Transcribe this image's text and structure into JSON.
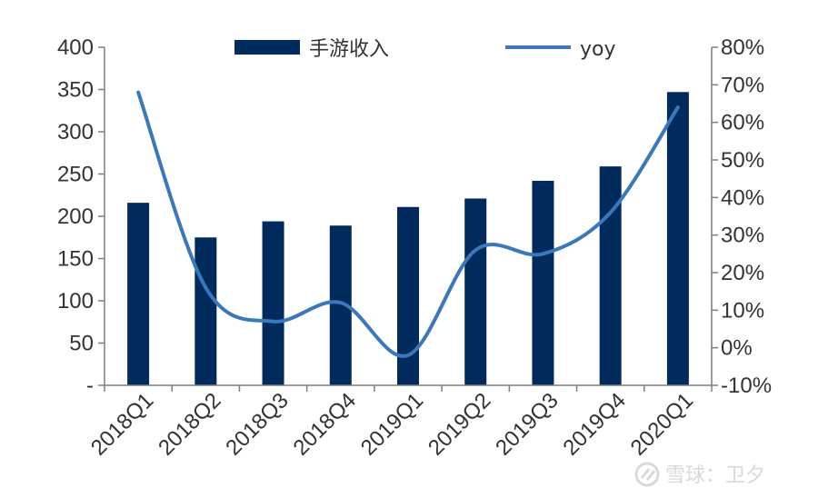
{
  "chart_data": {
    "type": "bar",
    "categories": [
      "2018Q1",
      "2018Q2",
      "2018Q3",
      "2018Q4",
      "2019Q1",
      "2019Q2",
      "2019Q3",
      "2019Q4",
      "2020Q1"
    ],
    "series": [
      {
        "name": "手游收入",
        "type": "bar",
        "axis": "left",
        "color": "#002b5c",
        "values": [
          216,
          175,
          194,
          189,
          211,
          221,
          242,
          259,
          347
        ]
      },
      {
        "name": "yoy",
        "type": "line",
        "axis": "right",
        "color": "#3a78bb",
        "values": [
          0.68,
          0.16,
          0.07,
          0.12,
          -0.02,
          0.26,
          0.25,
          0.36,
          0.64
        ]
      }
    ],
    "y_left": {
      "ylim": [
        0,
        400
      ],
      "ticks": [
        0,
        50,
        100,
        150,
        200,
        250,
        300,
        350,
        400
      ],
      "tick_labels": [
        "-",
        "50",
        "100",
        "150",
        "200",
        "250",
        "300",
        "350",
        "400"
      ]
    },
    "y_right": {
      "ylim": [
        -0.1,
        0.8
      ],
      "ticks": [
        -0.1,
        0,
        0.1,
        0.2,
        0.3,
        0.4,
        0.5,
        0.6,
        0.7,
        0.8
      ],
      "tick_labels": [
        "-10%",
        "0%",
        "10%",
        "20%",
        "30%",
        "40%",
        "50%",
        "60%",
        "70%",
        "80%"
      ]
    },
    "legend": "top",
    "grid": false
  },
  "watermark": {
    "text": "雪球：卫夕",
    "icon": "snowball-logo-icon"
  }
}
